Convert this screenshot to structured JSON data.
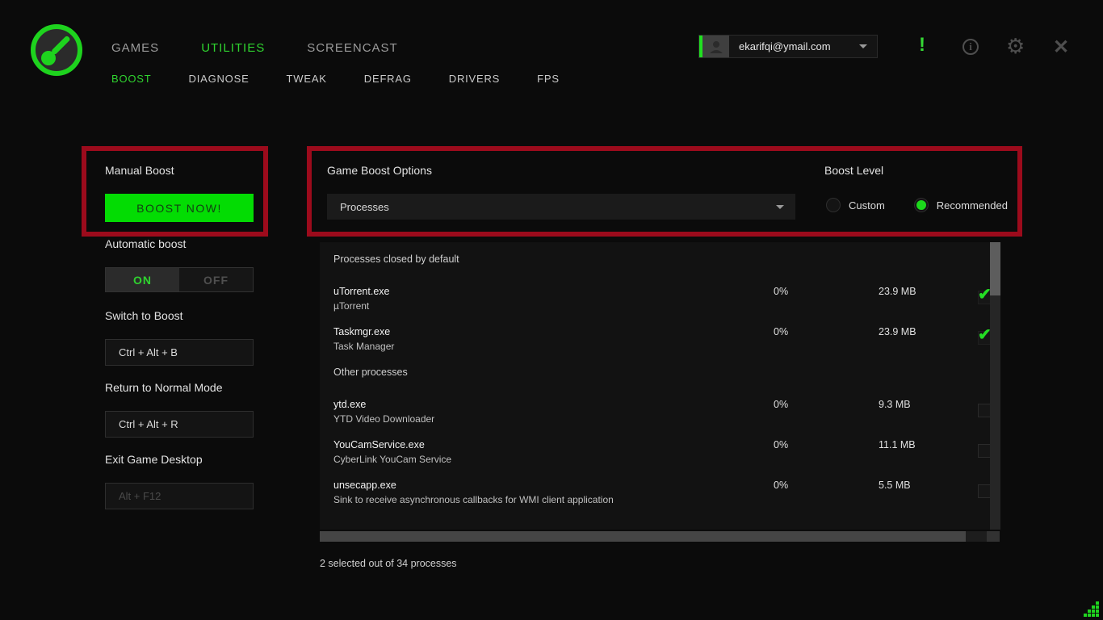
{
  "colors": {
    "accent_green": "#2fd32f",
    "button_green": "#03dc03",
    "annotation_red": "#9c0b1c",
    "background": "#0b0b0b"
  },
  "nav": {
    "primary": [
      {
        "label": "GAMES",
        "active": false
      },
      {
        "label": "UTILITIES",
        "active": true
      },
      {
        "label": "SCREENCAST",
        "active": false
      }
    ],
    "secondary": [
      {
        "label": "BOOST",
        "active": true
      },
      {
        "label": "DIAGNOSE",
        "active": false
      },
      {
        "label": "TWEAK",
        "active": false
      },
      {
        "label": "DEFRAG",
        "active": false
      },
      {
        "label": "DRIVERS",
        "active": false
      },
      {
        "label": "FPS",
        "active": false
      }
    ]
  },
  "account": {
    "email": "ekarifqi@ymail.com"
  },
  "header_icons": {
    "alert": "!",
    "info": "i",
    "gear": "⚙",
    "close": "✕"
  },
  "left_panel": {
    "manual_boost_label": "Manual Boost",
    "boost_now_label": "BOOST NOW!",
    "automatic_boost_label": "Automatic boost",
    "toggle": {
      "on_label": "ON",
      "off_label": "OFF",
      "state": "on"
    },
    "switch_to_boost_label": "Switch to Boost",
    "switch_hotkey": "Ctrl + Alt + B",
    "return_to_normal_label": "Return to Normal Mode",
    "return_hotkey": "Ctrl + Alt + R",
    "exit_game_desktop_label": "Exit Game Desktop",
    "exit_hotkey": "Alt + F12"
  },
  "main": {
    "game_boost_options_label": "Game Boost Options",
    "processes_dropdown_value": "Processes",
    "boost_level": {
      "label": "Boost Level",
      "options": [
        {
          "label": "Custom",
          "selected": false
        },
        {
          "label": "Recommended",
          "selected": true
        }
      ]
    },
    "process_list": {
      "sections": [
        {
          "header": "Processes closed by default",
          "rows": [
            {
              "name": "uTorrent.exe",
              "description": "µTorrent",
              "cpu": "0%",
              "memory": "23.9 MB",
              "checked": true
            },
            {
              "name": "Taskmgr.exe",
              "description": "Task Manager",
              "cpu": "0%",
              "memory": "23.9 MB",
              "checked": true
            }
          ]
        },
        {
          "header": "Other processes",
          "rows": [
            {
              "name": "ytd.exe",
              "description": "YTD Video Downloader",
              "cpu": "0%",
              "memory": "9.3 MB",
              "checked": false
            },
            {
              "name": "YouCamService.exe",
              "description": "CyberLink YouCam Service",
              "cpu": "0%",
              "memory": "11.1 MB",
              "checked": false
            },
            {
              "name": "unsecapp.exe",
              "description": "Sink to receive asynchronous callbacks for WMI client application",
              "cpu": "0%",
              "memory": "5.5 MB",
              "checked": false
            }
          ]
        }
      ],
      "summary": "2 selected out of 34 processes"
    }
  }
}
